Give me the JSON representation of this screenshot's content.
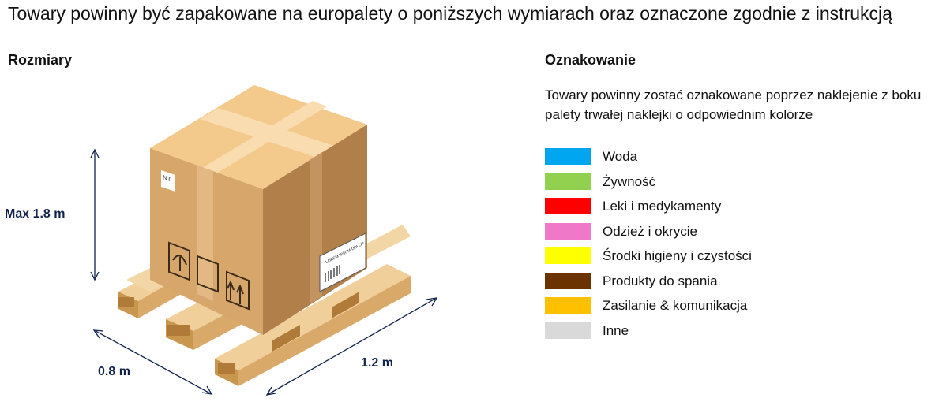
{
  "title": "Towary powinny być zapakowane na europalety o poniższych wymiarach oraz oznaczone zgodnie z instrukcją",
  "sizes": {
    "heading": "Rozmiary",
    "height_label": "Max 1.8 m",
    "width_label": "0.8 m",
    "length_label": "1.2 m",
    "box_tag": "NT",
    "box_label_text": "LOREM IPSUM DOLOR"
  },
  "marking": {
    "heading": "Oznakowanie",
    "description": "Towary powinny zostać oznakowane poprzez naklejenie z boku palety trwałej naklejki o odpowiednim kolorze",
    "legend": [
      {
        "label": "Woda",
        "color": "#00a6f0"
      },
      {
        "label": "Żywność",
        "color": "#92d050"
      },
      {
        "label": "Leki i medykamenty",
        "color": "#ff0000"
      },
      {
        "label": "Odzież i okrycie",
        "color": "#f078c8"
      },
      {
        "label": "Środki higieny i czystości",
        "color": "#ffff00"
      },
      {
        "label": "Produkty do spania",
        "color": "#6b3300"
      },
      {
        "label": "Zasilanie & komunikacja",
        "color": "#ffc000"
      },
      {
        "label": "Inne",
        "color": "#d9d9d9"
      }
    ]
  }
}
